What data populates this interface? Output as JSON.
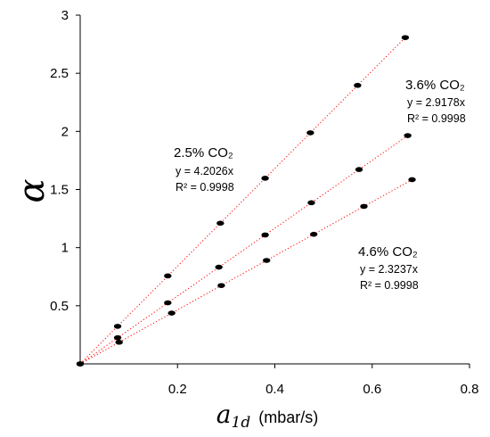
{
  "chart_data": {
    "type": "scatter",
    "title": "",
    "xlim": [
      0,
      0.8
    ],
    "ylim": [
      0,
      3
    ],
    "x_ticks": [
      "0.2",
      "0.4",
      "0.6",
      "0.8"
    ],
    "y_ticks": [
      "0.5",
      "1",
      "1.5",
      "2",
      "2.5",
      "3"
    ],
    "ylabel": "α",
    "xlabel": {
      "symbol": "a",
      "subscript": "1d",
      "unit": "(mbar/s)"
    },
    "grid": false,
    "trendline_color": "#ff0000",
    "marker_color": "#000000",
    "series": [
      {
        "name": "2.5% CO₂",
        "slope": 4.2026,
        "equation": "y = 4.2026x",
        "r2": "R² = 0.9998",
        "x": [
          0,
          0.077,
          0.18,
          0.288,
          0.38,
          0.473,
          0.57,
          0.668
        ],
        "y": [
          0,
          0.323,
          0.757,
          1.21,
          1.597,
          1.988,
          2.396,
          2.807
        ]
      },
      {
        "name": "3.6% CO₂",
        "slope": 2.9178,
        "equation": "y = 2.9178x",
        "r2": "R² = 0.9998",
        "x": [
          0,
          0.077,
          0.18,
          0.285,
          0.38,
          0.475,
          0.573,
          0.673
        ],
        "y": [
          0,
          0.225,
          0.525,
          0.832,
          1.109,
          1.386,
          1.672,
          1.964
        ]
      },
      {
        "name": "4.6% CO₂",
        "slope": 2.3237,
        "equation": "y = 2.3237x",
        "r2": "R² = 0.9998",
        "x": [
          0,
          0.08,
          0.188,
          0.29,
          0.383,
          0.48,
          0.583,
          0.682
        ],
        "y": [
          0,
          0.186,
          0.437,
          0.674,
          0.89,
          1.115,
          1.355,
          1.585
        ]
      }
    ]
  }
}
